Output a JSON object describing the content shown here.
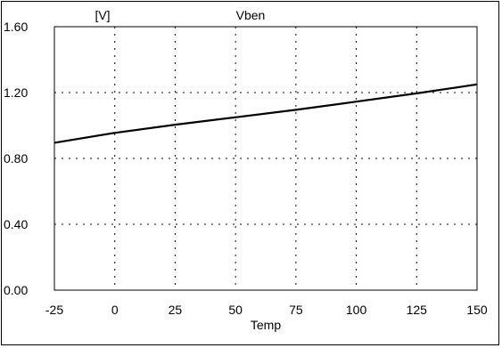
{
  "chart_data": {
    "type": "line",
    "title": "Vben",
    "ylabel": "[V]",
    "xlabel": "Temp",
    "xlim": [
      -25,
      150
    ],
    "ylim": [
      0.0,
      1.6
    ],
    "x_ticks": [
      -25,
      0,
      25,
      50,
      75,
      100,
      125,
      150
    ],
    "x_tick_labels": [
      "-25",
      "0",
      "25",
      "50",
      "75",
      "100",
      "125",
      "150"
    ],
    "y_ticks": [
      0.0,
      0.4,
      0.8,
      1.2,
      1.6
    ],
    "y_tick_labels": [
      "0.00",
      "0.40",
      "0.80",
      "1.20",
      "1.60"
    ],
    "grid": true,
    "series": [
      {
        "x": [
          -25,
          0,
          25,
          50,
          75,
          100,
          125,
          150
        ],
        "y": [
          0.895,
          0.955,
          1.005,
          1.05,
          1.095,
          1.145,
          1.195,
          1.25
        ],
        "color": "#000000"
      }
    ]
  }
}
